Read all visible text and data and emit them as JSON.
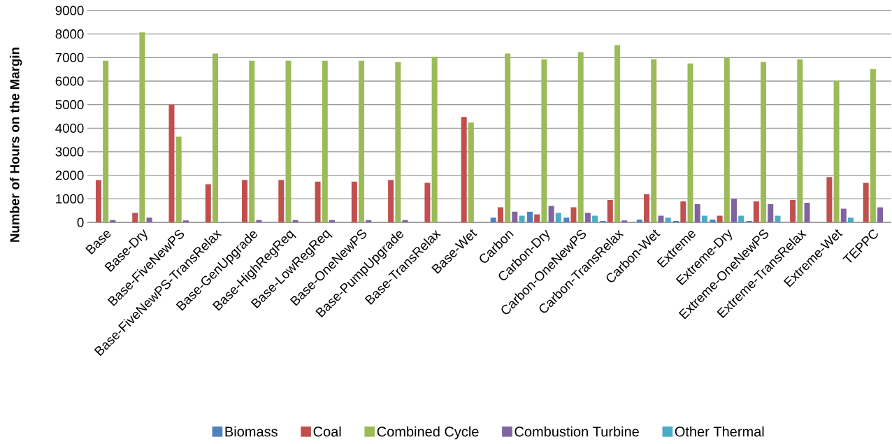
{
  "chart_data": {
    "type": "bar",
    "ylabel": "Number of Hours on the Margin",
    "categories": [
      "Base",
      "Base-Dry",
      "Base-FiveNewPS",
      "Base-FiveNewPS-TransRelax",
      "Base-GenUpgrade",
      "Base-HighRegReq",
      "Base-LowRegReq",
      "Base-OneNewPS",
      "Base-PumpUpgrade",
      "Base-TransRelax",
      "Base-Wet",
      "Carbon",
      "Carbon-Dry",
      "Carbon-OneNewPS",
      "Carbon-TransRelax",
      "Carbon-Wet",
      "Extreme",
      "Extreme-Dry",
      "Extreme-OneNewPS",
      "Extreme-TransRelax",
      "Extreme-Wet",
      "TEPPC"
    ],
    "series": [
      {
        "name": "Biomass",
        "color": "#4f81bd",
        "values": [
          0,
          0,
          0,
          0,
          0,
          0,
          0,
          0,
          0,
          0,
          0,
          200,
          450,
          200,
          60,
          120,
          60,
          120,
          60,
          0,
          0,
          0
        ]
      },
      {
        "name": "Coal",
        "color": "#c0504d",
        "values": [
          1800,
          400,
          5000,
          1620,
          1800,
          1800,
          1730,
          1730,
          1800,
          1680,
          4480,
          640,
          340,
          640,
          950,
          1200,
          890,
          280,
          890,
          950,
          1920,
          1680
        ]
      },
      {
        "name": "Combined Cycle",
        "color": "#9bbb59",
        "values": [
          6870,
          8070,
          3640,
          7170,
          6870,
          6870,
          6870,
          6870,
          6810,
          7030,
          4240,
          7170,
          6930,
          7230,
          7530,
          6930,
          6750,
          7000,
          6810,
          6930,
          6010,
          6510
        ]
      },
      {
        "name": "Combustion Turbine",
        "color": "#8064a2",
        "values": [
          100,
          200,
          80,
          0,
          100,
          100,
          100,
          100,
          100,
          0,
          0,
          450,
          700,
          400,
          80,
          280,
          770,
          1010,
          770,
          830,
          580,
          640
        ]
      },
      {
        "name": "Other Thermal",
        "color": "#4bacc6",
        "values": [
          0,
          0,
          0,
          0,
          0,
          0,
          0,
          0,
          0,
          0,
          0,
          280,
          400,
          280,
          0,
          200,
          280,
          280,
          280,
          0,
          200,
          0
        ]
      }
    ],
    "ylim": [
      0,
      9000
    ],
    "yticks": [
      0,
      1000,
      2000,
      3000,
      4000,
      5000,
      6000,
      7000,
      8000,
      9000
    ],
    "grid": "y",
    "legend": "bottom"
  }
}
